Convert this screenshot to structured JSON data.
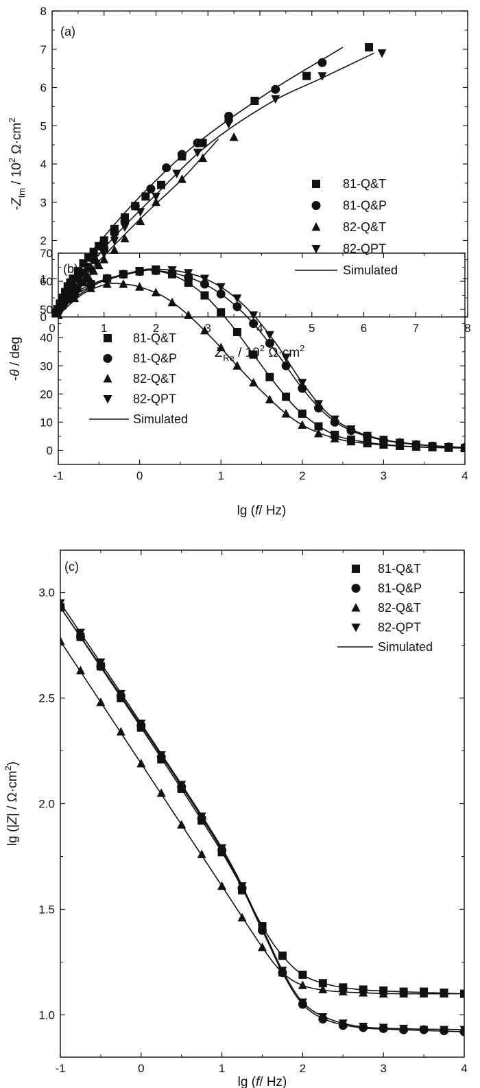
{
  "marker_color": "#111111",
  "line_color": "#111111",
  "chart_data": [
    {
      "id": "a",
      "type": "scatter",
      "panel_label": "(a)",
      "x_axis": {
        "var": "Z",
        "sub": "Re",
        "unit_pre": " / 10",
        "exp": "2",
        "unit_mid": " Ω·cm",
        "unit_exp": "2"
      },
      "y_axis": {
        "prefix": "-",
        "var": "Z",
        "sub": "Im",
        "unit_pre": " / 10",
        "exp": "2",
        "unit_mid": " Ω·cm",
        "unit_exp": "2"
      },
      "xlim": [
        0,
        8
      ],
      "ylim": [
        0,
        8
      ],
      "xticks": [
        0,
        1,
        2,
        3,
        4,
        5,
        6,
        7,
        8
      ],
      "yticks": [
        0,
        1,
        2,
        3,
        4,
        5,
        6,
        7,
        8
      ],
      "tick_labels_x": [
        "0",
        "1",
        "2",
        "3",
        "4",
        "5",
        "6",
        "7",
        "8"
      ],
      "tick_labels_y": [
        "0",
        "1",
        "2",
        "3",
        "4",
        "5",
        "6",
        "7",
        "8"
      ],
      "legend_position": "center-right",
      "legend": [
        "81-Q&T",
        "81-Q&P",
        "82-Q&T",
        "82-QPT",
        "Simulated"
      ],
      "series": [
        {
          "name": "81-Q&T",
          "marker": "square",
          "x": [
            0.05,
            0.1,
            0.15,
            0.2,
            0.25,
            0.3,
            0.35,
            0.4,
            0.5,
            0.6,
            0.7,
            0.8,
            0.9,
            1.0,
            1.2,
            1.4,
            1.6,
            1.8,
            2.1,
            2.5,
            2.9,
            3.4,
            3.9,
            4.9,
            6.1
          ],
          "y": [
            0.1,
            0.2,
            0.35,
            0.5,
            0.65,
            0.8,
            0.9,
            1.0,
            1.2,
            1.4,
            1.55,
            1.7,
            1.85,
            2.0,
            2.3,
            2.6,
            2.9,
            3.15,
            3.45,
            4.2,
            4.55,
            5.2,
            5.65,
            6.3,
            7.05
          ]
        },
        {
          "name": "81-Q&P",
          "marker": "circle",
          "x": [
            0.1,
            0.2,
            0.3,
            0.4,
            0.5,
            0.6,
            0.7,
            0.8,
            1.0,
            1.2,
            1.4,
            1.6,
            1.9,
            2.2,
            2.5,
            2.8,
            3.4,
            4.3,
            5.2
          ],
          "y": [
            0.2,
            0.4,
            0.6,
            0.8,
            1.0,
            1.15,
            1.3,
            1.5,
            1.8,
            2.2,
            2.5,
            2.9,
            3.35,
            3.9,
            4.25,
            4.55,
            5.25,
            5.95,
            6.65
          ]
        },
        {
          "name": "82-Q&T",
          "marker": "triangle-up",
          "x": [
            0.1,
            0.2,
            0.3,
            0.4,
            0.5,
            0.6,
            0.7,
            0.8,
            0.9,
            1.0,
            1.2,
            1.4,
            1.7,
            2.0,
            2.5,
            2.9,
            3.5
          ],
          "y": [
            0.15,
            0.3,
            0.45,
            0.6,
            0.75,
            0.9,
            1.05,
            1.2,
            1.35,
            1.5,
            1.75,
            2.05,
            2.5,
            3.0,
            3.6,
            4.15,
            4.7
          ]
        },
        {
          "name": "82-QPT",
          "marker": "triangle-down",
          "x": [
            0.15,
            0.25,
            0.35,
            0.45,
            0.55,
            0.65,
            0.75,
            0.85,
            1.0,
            1.2,
            1.4,
            1.7,
            2.0,
            2.4,
            2.8,
            3.4,
            4.3,
            5.2,
            6.35
          ],
          "y": [
            0.1,
            0.3,
            0.5,
            0.7,
            0.85,
            1.0,
            1.2,
            1.4,
            1.65,
            2.0,
            2.35,
            2.75,
            3.15,
            3.75,
            4.3,
            5.05,
            5.7,
            6.3,
            6.9
          ]
        }
      ],
      "fits": [
        {
          "name": "Simulated 81-Q&T",
          "x": [
            0.02,
            0.4,
            1.0,
            1.8,
            2.8,
            4.2,
            5.6
          ],
          "y": [
            0.05,
            1.05,
            2.1,
            3.3,
            4.55,
            5.9,
            7.05
          ]
        },
        {
          "name": "Simulated 82-Q&T",
          "x": [
            0.02,
            0.5,
            1.0,
            1.8,
            2.5,
            3.2
          ],
          "y": [
            0.05,
            0.85,
            1.6,
            2.7,
            3.6,
            4.65
          ]
        },
        {
          "name": "Simulated 82-QPT",
          "x": [
            0.1,
            0.6,
            1.2,
            2.0,
            3.0,
            4.2,
            5.2,
            6.2
          ],
          "y": [
            0.05,
            1.1,
            2.1,
            3.2,
            4.5,
            5.6,
            6.25,
            6.9
          ]
        }
      ]
    },
    {
      "id": "b",
      "type": "scatter",
      "panel_label": "(b)",
      "x_axis": {
        "pre": "lg (",
        "var": "f",
        "post": "/ Hz)"
      },
      "y_axis": {
        "prefix": "-",
        "var": "θ",
        "post": " / deg"
      },
      "xlim": [
        -1,
        4
      ],
      "ylim": [
        -5,
        70
      ],
      "xticks": [
        -1,
        0,
        1,
        2,
        3,
        4
      ],
      "yticks": [
        0,
        10,
        20,
        30,
        40,
        50,
        60,
        70
      ],
      "tick_labels_x": [
        "-1",
        "0",
        "1",
        "2",
        "3",
        "4"
      ],
      "tick_labels_y": [
        "0",
        "10",
        "20",
        "30",
        "40",
        "50",
        "60",
        "70"
      ],
      "legend_position": "lower-left",
      "legend": [
        "81-Q&T",
        "81-Q&P",
        "82-Q&T",
        "82-QPT",
        "Simulated"
      ],
      "series": [
        {
          "name": "81-Q&T",
          "marker": "square",
          "x": [
            -1,
            -0.8,
            -0.6,
            -0.4,
            -0.2,
            0,
            0.2,
            0.4,
            0.6,
            0.8,
            1.0,
            1.2,
            1.4,
            1.6,
            1.8,
            2.0,
            2.2,
            2.4,
            2.6,
            2.8,
            3.0,
            3.2,
            3.4,
            3.6,
            3.8,
            4.0
          ],
          "y": [
            53,
            56,
            59,
            61,
            62.5,
            63.5,
            63.8,
            62.5,
            59.5,
            55,
            49,
            42,
            34,
            26,
            19,
            13,
            8.5,
            5.5,
            3.8,
            2.8,
            2.1,
            1.6,
            1.3,
            1.1,
            0.9,
            0.8
          ]
        },
        {
          "name": "81-Q&P",
          "marker": "circle",
          "x": [
            -1,
            -0.8,
            -0.6,
            -0.4,
            -0.2,
            0,
            0.2,
            0.4,
            0.6,
            0.8,
            1.0,
            1.2,
            1.4,
            1.6,
            1.8,
            2.0,
            2.2,
            2.4,
            2.6,
            2.8,
            3.0,
            3.2,
            3.4,
            3.6,
            3.8,
            4.0
          ],
          "y": [
            52,
            55.5,
            58.5,
            61,
            62.5,
            63.5,
            63.8,
            63,
            61.5,
            59,
            55.5,
            51,
            45,
            38,
            30,
            22,
            15,
            10,
            7,
            5,
            3.6,
            2.7,
            2,
            1.5,
            1.2,
            1.0
          ]
        },
        {
          "name": "82-Q&T",
          "marker": "triangle-up",
          "x": [
            -1,
            -0.8,
            -0.6,
            -0.4,
            -0.2,
            0,
            0.2,
            0.4,
            0.6,
            0.8,
            1.0,
            1.2,
            1.4,
            1.6,
            1.8,
            2.0,
            2.2,
            2.4,
            2.6,
            2.8,
            3.0,
            3.2,
            3.4,
            3.6,
            3.8,
            4.0
          ],
          "y": [
            48,
            54,
            57.5,
            59,
            59,
            58,
            56,
            52.5,
            48,
            42.5,
            36.5,
            30,
            24,
            18,
            13,
            9,
            6,
            4.2,
            3.1,
            2.4,
            1.9,
            1.5,
            1.2,
            1.0,
            0.9,
            0.8
          ]
        },
        {
          "name": "82-QPT",
          "marker": "triangle-down",
          "x": [
            -1,
            -0.8,
            -0.6,
            -0.4,
            -0.2,
            0,
            0.2,
            0.4,
            0.6,
            0.8,
            1.0,
            1.2,
            1.4,
            1.6,
            1.8,
            2.0,
            2.2,
            2.4,
            2.6,
            2.8,
            3.0,
            3.2,
            3.4,
            3.6,
            3.8,
            4.0
          ],
          "y": [
            50,
            54.5,
            58,
            60.5,
            62.5,
            63.8,
            64.3,
            64,
            63,
            61,
            58,
            54,
            48,
            41,
            33,
            24,
            16.5,
            11,
            7.5,
            5.2,
            3.8,
            2.8,
            2.1,
            1.6,
            1.2,
            1.0
          ]
        }
      ],
      "fits": [
        {
          "name": "Simulated 81-Q&T",
          "x": [
            -1,
            -0.5,
            0,
            0.2,
            0.5,
            0.8,
            1.1,
            1.4,
            1.7,
            2.0,
            2.4,
            2.8,
            3.2,
            3.6,
            4.0
          ],
          "y": [
            53,
            60,
            63.5,
            63.8,
            61,
            55,
            45.5,
            34,
            22.5,
            13,
            5.5,
            2.8,
            1.6,
            1.1,
            0.8
          ]
        },
        {
          "name": "Simulated 81-Q&P",
          "x": [
            -1,
            -0.5,
            0,
            0.2,
            0.5,
            0.8,
            1.1,
            1.4,
            1.7,
            2.0,
            2.3,
            2.6,
            3.0,
            3.5,
            4.0
          ],
          "y": [
            52,
            59.5,
            63.5,
            63.8,
            62.3,
            59,
            53.3,
            45,
            34,
            22,
            12.5,
            7,
            3.6,
            1.8,
            1.0
          ]
        },
        {
          "name": "Simulated 82-Q&T",
          "x": [
            -1,
            -0.7,
            -0.4,
            -0.2,
            0,
            0.3,
            0.6,
            0.9,
            1.2,
            1.5,
            1.8,
            2.1,
            2.5,
            3.0,
            3.5,
            4.0
          ],
          "y": [
            48,
            55.5,
            59,
            59,
            58,
            54.5,
            48,
            39.5,
            30,
            21,
            13,
            7.5,
            3.6,
            1.9,
            1.1,
            0.8
          ]
        },
        {
          "name": "Simulated 82-QPT",
          "x": [
            -1,
            -0.5,
            0,
            0.2,
            0.5,
            0.8,
            1.1,
            1.4,
            1.7,
            2.0,
            2.3,
            2.6,
            3.0,
            3.5,
            4.0
          ],
          "y": [
            50,
            59.5,
            63.8,
            64.3,
            63.5,
            61,
            56,
            48,
            37,
            24,
            13.5,
            7.5,
            3.8,
            1.9,
            1.0
          ]
        }
      ]
    },
    {
      "id": "c",
      "type": "scatter",
      "panel_label": "(c)",
      "x_axis": {
        "pre": "lg (",
        "var": "f",
        "post": "/ Hz)"
      },
      "y_axis": {
        "pre": "lg (|",
        "var": "Z",
        "post": "| / Ω·cm",
        "unit_exp": "2",
        "post2": ")"
      },
      "xlim": [
        -1,
        4
      ],
      "ylim": [
        0.8,
        3.2
      ],
      "xticks": [
        -1,
        0,
        1,
        2,
        3,
        4
      ],
      "yticks": [
        1.0,
        1.5,
        2.0,
        2.5,
        3.0
      ],
      "tick_labels_x": [
        "-1",
        "0",
        "1",
        "2",
        "3",
        "4"
      ],
      "tick_labels_y": [
        "1.0",
        "1.5",
        "2.0",
        "2.5",
        "3.0"
      ],
      "legend_position": "top-right",
      "legend": [
        "81-Q&T",
        "81-Q&P",
        "82-Q&T",
        "82-QPT",
        "Simulated"
      ],
      "series": [
        {
          "name": "81-Q&T",
          "marker": "square",
          "x": [
            -1,
            -0.75,
            -0.5,
            -0.25,
            0,
            0.25,
            0.5,
            0.75,
            1.0,
            1.25,
            1.5,
            1.75,
            2.0,
            2.25,
            2.5,
            2.75,
            3.0,
            3.25,
            3.5,
            3.75,
            4.0
          ],
          "y": [
            2.93,
            2.79,
            2.65,
            2.5,
            2.36,
            2.21,
            2.07,
            1.92,
            1.77,
            1.59,
            1.42,
            1.28,
            1.19,
            1.15,
            1.13,
            1.12,
            1.115,
            1.11,
            1.11,
            1.105,
            1.1
          ]
        },
        {
          "name": "81-Q&P",
          "marker": "circle",
          "x": [
            -1,
            -0.75,
            -0.5,
            -0.25,
            0,
            0.25,
            0.5,
            0.75,
            1.0,
            1.25,
            1.5,
            1.75,
            2.0,
            2.25,
            2.5,
            2.75,
            3.0,
            3.25,
            3.5,
            3.75,
            4.0
          ],
          "y": [
            2.93,
            2.79,
            2.65,
            2.51,
            2.37,
            2.22,
            2.08,
            1.93,
            1.78,
            1.6,
            1.4,
            1.2,
            1.05,
            0.98,
            0.95,
            0.94,
            0.935,
            0.93,
            0.93,
            0.925,
            0.92
          ]
        },
        {
          "name": "82-Q&T",
          "marker": "triangle-up",
          "x": [
            -1,
            -0.75,
            -0.5,
            -0.25,
            0,
            0.25,
            0.5,
            0.75,
            1.0,
            1.25,
            1.5,
            1.75,
            2.0,
            2.25,
            2.5,
            2.75,
            3.0,
            3.25,
            3.5,
            3.75,
            4.0
          ],
          "y": [
            2.77,
            2.63,
            2.48,
            2.34,
            2.19,
            2.05,
            1.9,
            1.76,
            1.61,
            1.46,
            1.32,
            1.2,
            1.14,
            1.12,
            1.11,
            1.105,
            1.1,
            1.1,
            1.1,
            1.1,
            1.1
          ]
        },
        {
          "name": "82-QPT",
          "marker": "triangle-down",
          "x": [
            -1,
            -0.75,
            -0.5,
            -0.25,
            0,
            0.25,
            0.5,
            0.75,
            1.0,
            1.25,
            1.5,
            1.75,
            2.0,
            2.25,
            2.5,
            2.75,
            3.0,
            3.25,
            3.5,
            3.75,
            4.0
          ],
          "y": [
            2.95,
            2.81,
            2.67,
            2.52,
            2.38,
            2.23,
            2.09,
            1.94,
            1.79,
            1.61,
            1.41,
            1.21,
            1.06,
            0.99,
            0.96,
            0.945,
            0.94,
            0.935,
            0.93,
            0.93,
            0.93
          ]
        }
      ],
      "fits": [
        {
          "name": "Simulated 81-Q&T",
          "x": [
            -1,
            0,
            1,
            1.5,
            1.75,
            2.0,
            2.3,
            2.7,
            3.2,
            4.0
          ],
          "y": [
            2.93,
            2.36,
            1.77,
            1.42,
            1.28,
            1.19,
            1.145,
            1.12,
            1.11,
            1.1
          ]
        },
        {
          "name": "Simulated 81-Q&P",
          "x": [
            -1,
            0,
            1,
            1.5,
            1.75,
            2.0,
            2.3,
            2.7,
            3.2,
            4.0
          ],
          "y": [
            2.93,
            2.37,
            1.78,
            1.4,
            1.2,
            1.05,
            0.975,
            0.94,
            0.93,
            0.92
          ]
        },
        {
          "name": "Simulated 82-Q&T",
          "x": [
            -1,
            0,
            1,
            1.5,
            1.75,
            2.0,
            2.3,
            2.7,
            3.2,
            4.0
          ],
          "y": [
            2.77,
            2.19,
            1.61,
            1.32,
            1.2,
            1.14,
            1.115,
            1.105,
            1.1,
            1.1
          ]
        },
        {
          "name": "Simulated 82-QPT",
          "x": [
            -1,
            0,
            1,
            1.5,
            1.75,
            2.0,
            2.3,
            2.7,
            3.2,
            4.0
          ],
          "y": [
            2.95,
            2.38,
            1.79,
            1.41,
            1.21,
            1.06,
            0.985,
            0.945,
            0.935,
            0.93
          ]
        }
      ]
    }
  ]
}
